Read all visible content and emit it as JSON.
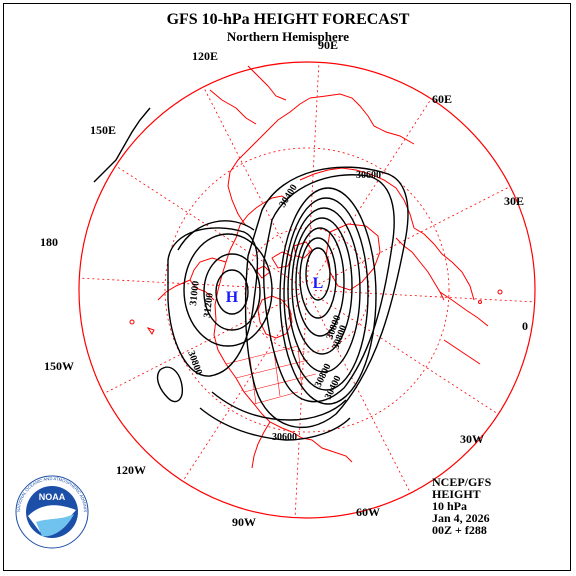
{
  "header": {
    "title": "GFS 10-hPa HEIGHT FORECAST",
    "subtitle": "Northern Hemisphere"
  },
  "longitude_labels": [
    "90E",
    "60E",
    "30E",
    "0",
    "30W",
    "60W",
    "90W",
    "120W",
    "150W",
    "180",
    "150E",
    "120E"
  ],
  "contour_labels": [
    "30600",
    "30400",
    "31000",
    "31200",
    "30800",
    "30600",
    "30800",
    "30800",
    "30800",
    "30400"
  ],
  "centers": {
    "high": "H",
    "low": "L"
  },
  "info": {
    "source": "NCEP/GFS",
    "field": "HEIGHT",
    "level": "10 hPa",
    "date": "Jan 4, 2026",
    "run": "00Z + f288"
  },
  "logo": {
    "name": "NOAA",
    "ring_text": "NATIONAL OCEANIC AND ATMOSPHERIC ADMINISTRATION · U.S. DEPARTMENT OF COMMERCE"
  },
  "colors": {
    "coast": "#ff0000",
    "grid": "#ff0000",
    "contour": "#000000",
    "center": "#1a1aff",
    "noaa_blue": "#1c4fa8"
  }
}
